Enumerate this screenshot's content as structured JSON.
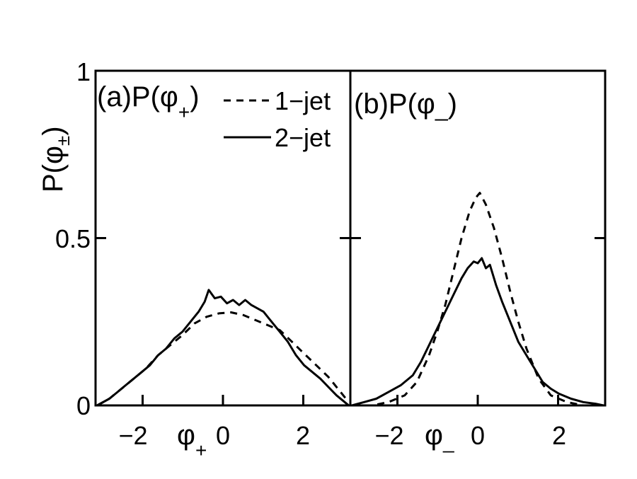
{
  "ylabel": "P(φ",
  "ylabel_sub": "±",
  "chart_data": [
    {
      "type": "line",
      "panel_label": "(a)P(φ",
      "panel_label_sub": "+",
      "xlabel": "φ",
      "xlabel_sub": "+",
      "xlim": [
        -3.14,
        3.14
      ],
      "ylim": [
        0,
        1
      ],
      "xticks": [
        -2,
        0,
        2
      ],
      "xtick_labels": [
        "−2",
        "0",
        "2"
      ],
      "yticks": [
        0,
        0.5,
        1
      ],
      "ytick_labels": [
        "0",
        "0.5",
        "1"
      ],
      "grid": false,
      "legend_position": "top-right",
      "series": [
        {
          "name": "1−jet",
          "style": "dashed",
          "x": [
            -3.1,
            -2.8,
            -2.5,
            -2.2,
            -1.9,
            -1.6,
            -1.3,
            -1.0,
            -0.7,
            -0.4,
            -0.1,
            0.2,
            0.5,
            0.8,
            1.1,
            1.4,
            1.7,
            2.0,
            2.3,
            2.6,
            2.9,
            3.1
          ],
          "y": [
            0.0,
            0.02,
            0.05,
            0.08,
            0.11,
            0.15,
            0.18,
            0.21,
            0.245,
            0.265,
            0.275,
            0.278,
            0.27,
            0.255,
            0.24,
            0.225,
            0.19,
            0.155,
            0.12,
            0.085,
            0.04,
            0.01
          ]
        },
        {
          "name": "2−jet",
          "style": "solid",
          "x": [
            -3.1,
            -2.8,
            -2.6,
            -2.4,
            -2.2,
            -2.0,
            -1.8,
            -1.6,
            -1.4,
            -1.2,
            -1.0,
            -0.8,
            -0.6,
            -0.45,
            -0.35,
            -0.2,
            -0.05,
            0.1,
            0.25,
            0.4,
            0.55,
            0.7,
            0.85,
            1.0,
            1.2,
            1.4,
            1.6,
            1.8,
            2.0,
            2.2,
            2.4,
            2.6,
            2.8,
            3.0,
            3.1
          ],
          "y": [
            0.0,
            0.02,
            0.04,
            0.06,
            0.08,
            0.1,
            0.12,
            0.15,
            0.17,
            0.2,
            0.22,
            0.25,
            0.28,
            0.31,
            0.345,
            0.32,
            0.325,
            0.305,
            0.315,
            0.3,
            0.315,
            0.3,
            0.29,
            0.28,
            0.25,
            0.22,
            0.19,
            0.15,
            0.12,
            0.1,
            0.08,
            0.055,
            0.03,
            0.01,
            0.0
          ]
        }
      ]
    },
    {
      "type": "line",
      "panel_label": "(b)P(φ",
      "panel_label_sub": "_",
      "panel_label_close": ")",
      "xlabel": "φ",
      "xlabel_sub": "_",
      "xlim": [
        -3.14,
        3.14
      ],
      "ylim": [
        0,
        1
      ],
      "xticks": [
        -2,
        0,
        2
      ],
      "xtick_labels": [
        "−2",
        "0",
        "2"
      ],
      "grid": false,
      "series": [
        {
          "name": "1−jet",
          "style": "dashed",
          "x": [
            -3.1,
            -2.6,
            -2.2,
            -1.8,
            -1.5,
            -1.2,
            -1.0,
            -0.8,
            -0.6,
            -0.4,
            -0.2,
            -0.05,
            0.05,
            0.2,
            0.4,
            0.6,
            0.8,
            1.0,
            1.2,
            1.5,
            1.8,
            2.2,
            2.6,
            3.1
          ],
          "y": [
            0.0,
            0.0,
            0.01,
            0.03,
            0.07,
            0.15,
            0.22,
            0.3,
            0.4,
            0.5,
            0.58,
            0.62,
            0.635,
            0.6,
            0.53,
            0.44,
            0.34,
            0.25,
            0.17,
            0.08,
            0.03,
            0.01,
            0.0,
            0.0
          ]
        },
        {
          "name": "2−jet",
          "style": "solid",
          "x": [
            -3.1,
            -2.8,
            -2.5,
            -2.2,
            -1.9,
            -1.6,
            -1.4,
            -1.2,
            -1.0,
            -0.8,
            -0.6,
            -0.4,
            -0.25,
            -0.1,
            0.0,
            0.1,
            0.2,
            0.3,
            0.45,
            0.6,
            0.8,
            1.0,
            1.2,
            1.4,
            1.6,
            1.8,
            2.0,
            2.3,
            2.6,
            2.9,
            3.1
          ],
          "y": [
            0.0,
            0.01,
            0.02,
            0.04,
            0.06,
            0.09,
            0.13,
            0.18,
            0.23,
            0.28,
            0.33,
            0.38,
            0.41,
            0.43,
            0.425,
            0.44,
            0.41,
            0.42,
            0.36,
            0.31,
            0.25,
            0.19,
            0.15,
            0.11,
            0.07,
            0.05,
            0.035,
            0.02,
            0.01,
            0.005,
            0.0
          ]
        }
      ]
    }
  ]
}
